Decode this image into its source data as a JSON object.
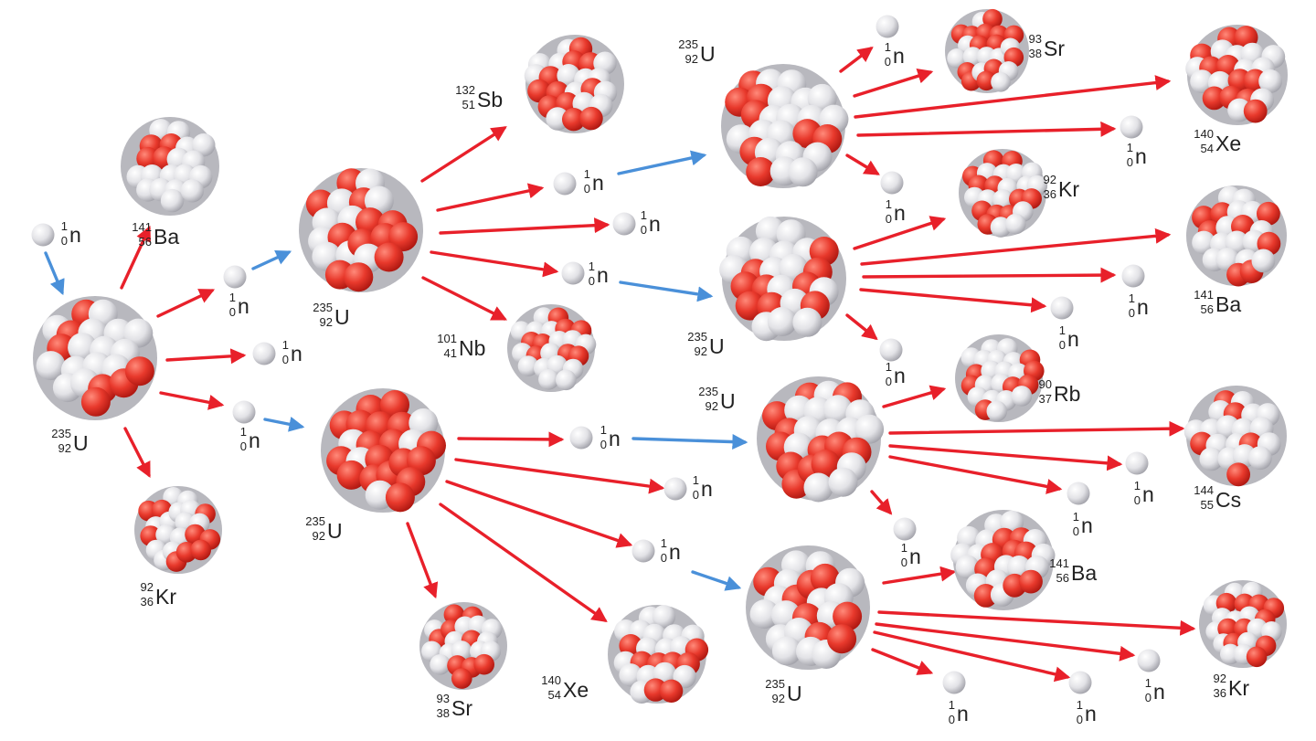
{
  "colors": {
    "arrow_product": "#e8202a",
    "arrow_neutron": "#4a90d9",
    "proton": "#e23a2e",
    "neutron": "#e4e4e8",
    "label": "#222222"
  },
  "nuclei": [
    {
      "id": "u0",
      "A": "235",
      "Z": "92",
      "sym": "U"
    },
    {
      "id": "ba1",
      "A": "141",
      "Z": "56",
      "sym": "Ba"
    },
    {
      "id": "kr1",
      "A": "92",
      "Z": "36",
      "sym": "Kr"
    },
    {
      "id": "u1a",
      "A": "235",
      "Z": "92",
      "sym": "U"
    },
    {
      "id": "u1b",
      "A": "235",
      "Z": "92",
      "sym": "U"
    },
    {
      "id": "sb2",
      "A": "132",
      "Z": "51",
      "sym": "Sb"
    },
    {
      "id": "nb2",
      "A": "101",
      "Z": "41",
      "sym": "Nb"
    },
    {
      "id": "sr2",
      "A": "93",
      "Z": "38",
      "sym": "Sr"
    },
    {
      "id": "xe2",
      "A": "140",
      "Z": "54",
      "sym": "Xe"
    },
    {
      "id": "u2a",
      "A": "235",
      "Z": "92",
      "sym": "U"
    },
    {
      "id": "u2b",
      "A": "235",
      "Z": "92",
      "sym": "U"
    },
    {
      "id": "u2c",
      "A": "235",
      "Z": "92",
      "sym": "U"
    },
    {
      "id": "u2d",
      "A": "235",
      "Z": "92",
      "sym": "U"
    },
    {
      "id": "sr3",
      "A": "93",
      "Z": "38",
      "sym": "Sr"
    },
    {
      "id": "xe3",
      "A": "140",
      "Z": "54",
      "sym": "Xe"
    },
    {
      "id": "kr3",
      "A": "92",
      "Z": "36",
      "sym": "Kr"
    },
    {
      "id": "ba3",
      "A": "141",
      "Z": "56",
      "sym": "Ba"
    },
    {
      "id": "rb3",
      "A": "90",
      "Z": "37",
      "sym": "Rb"
    },
    {
      "id": "cs3",
      "A": "144",
      "Z": "55",
      "sym": "Cs"
    },
    {
      "id": "ba4",
      "A": "141",
      "Z": "56",
      "sym": "Ba"
    },
    {
      "id": "kr4",
      "A": "92",
      "Z": "36",
      "sym": "Kr"
    }
  ],
  "neutrons": [
    {
      "id": "n0",
      "A": "1",
      "Z": "0",
      "sym": "n"
    },
    {
      "id": "n1",
      "A": "1",
      "Z": "0",
      "sym": "n"
    },
    {
      "id": "n2",
      "A": "1",
      "Z": "0",
      "sym": "n"
    },
    {
      "id": "n3",
      "A": "1",
      "Z": "0",
      "sym": "n"
    },
    {
      "id": "n4",
      "A": "1",
      "Z": "0",
      "sym": "n"
    },
    {
      "id": "n5",
      "A": "1",
      "Z": "0",
      "sym": "n"
    },
    {
      "id": "n6",
      "A": "1",
      "Z": "0",
      "sym": "n"
    },
    {
      "id": "n7",
      "A": "1",
      "Z": "0",
      "sym": "n"
    },
    {
      "id": "n8",
      "A": "1",
      "Z": "0",
      "sym": "n"
    },
    {
      "id": "n9",
      "A": "1",
      "Z": "0",
      "sym": "n"
    },
    {
      "id": "n10",
      "A": "1",
      "Z": "0",
      "sym": "n"
    },
    {
      "id": "n11",
      "A": "1",
      "Z": "0",
      "sym": "n"
    },
    {
      "id": "n12",
      "A": "1",
      "Z": "0",
      "sym": "n"
    },
    {
      "id": "n13",
      "A": "1",
      "Z": "0",
      "sym": "n"
    },
    {
      "id": "n14",
      "A": "1",
      "Z": "0",
      "sym": "n"
    },
    {
      "id": "n15",
      "A": "1",
      "Z": "0",
      "sym": "n"
    },
    {
      "id": "n16",
      "A": "1",
      "Z": "0",
      "sym": "n"
    },
    {
      "id": "n17",
      "A": "1",
      "Z": "0",
      "sym": "n"
    },
    {
      "id": "n18",
      "A": "1",
      "Z": "0",
      "sym": "n"
    },
    {
      "id": "n19",
      "A": "1",
      "Z": "0",
      "sym": "n"
    },
    {
      "id": "n20",
      "A": "1",
      "Z": "0",
      "sym": "n"
    },
    {
      "id": "n21",
      "A": "1",
      "Z": "0",
      "sym": "n"
    }
  ]
}
